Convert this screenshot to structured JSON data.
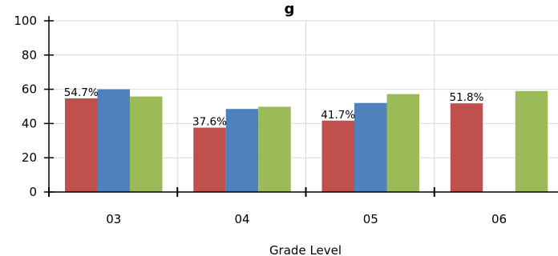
{
  "chart_data": {
    "type": "bar",
    "title": "g",
    "xlabel": "Grade Level",
    "ylabel": "",
    "ylim": [
      0,
      100
    ],
    "yticks": [
      0,
      20,
      40,
      60,
      80,
      100
    ],
    "categories": [
      "03",
      "04",
      "05",
      "06"
    ],
    "grid": true,
    "legend": "none",
    "series": [
      {
        "color": "#c0504d",
        "values": [
          54.7,
          37.6,
          41.7,
          51.8
        ],
        "labels": [
          "54.7%",
          "37.6%",
          "41.7%",
          "51.8%"
        ]
      },
      {
        "color": "#4f81bd",
        "values": [
          60,
          48.5,
          52,
          null
        ],
        "labels": []
      },
      {
        "color": "#9bbb59",
        "values": [
          55.8,
          49.8,
          57.2,
          59
        ]
      }
    ]
  }
}
